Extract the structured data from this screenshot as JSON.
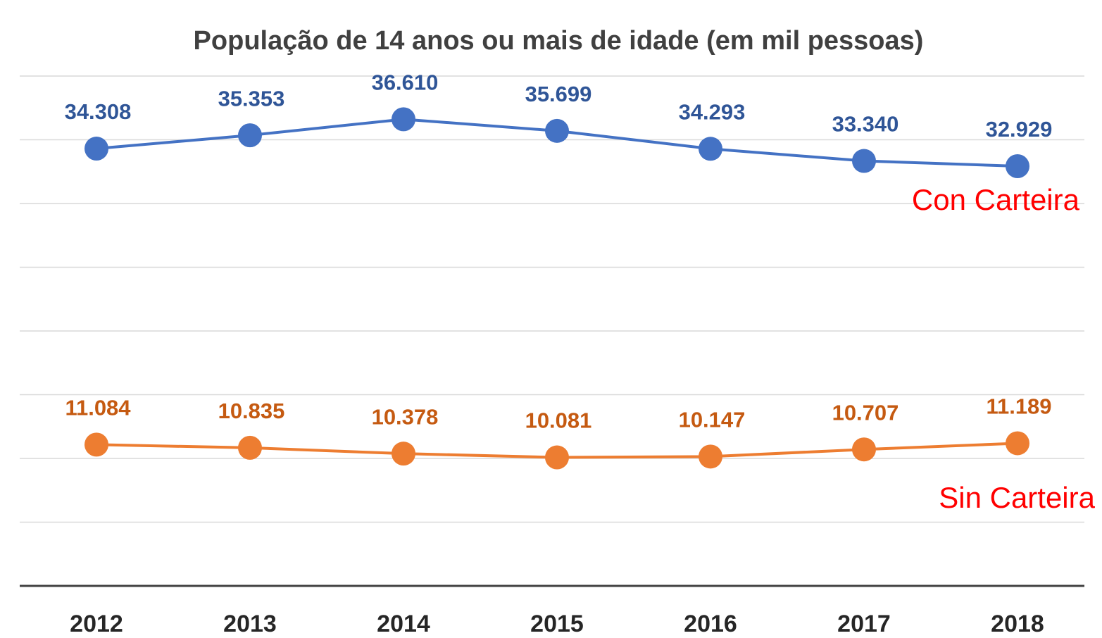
{
  "chart_data": {
    "type": "line",
    "title": "População de 14 anos ou mais de idade (em mil pessoas)",
    "categories": [
      "2012",
      "2013",
      "2014",
      "2015",
      "2016",
      "2017",
      "2018"
    ],
    "series": [
      {
        "name": "Con Carteira",
        "color": "#4472c4",
        "label_color": "#2f5597",
        "values": [
          34308,
          35353,
          36610,
          35699,
          34293,
          33340,
          32929
        ],
        "value_labels": [
          "34.308",
          "35.353",
          "36.610",
          "35.699",
          "34.293",
          "33.340",
          "32.929"
        ]
      },
      {
        "name": "Sin Carteira",
        "color": "#ed7d31",
        "label_color": "#c55a11",
        "values": [
          11084,
          10835,
          10378,
          10081,
          10147,
          10707,
          11189
        ],
        "value_labels": [
          "11.084",
          "10.835",
          "10.378",
          "10.081",
          "10.147",
          "10.707",
          "11.189"
        ]
      }
    ],
    "ylim": [
      0,
      40000
    ],
    "yticks": [
      0,
      5000,
      10000,
      15000,
      20000,
      25000,
      30000,
      35000,
      40000
    ],
    "grid": true
  }
}
